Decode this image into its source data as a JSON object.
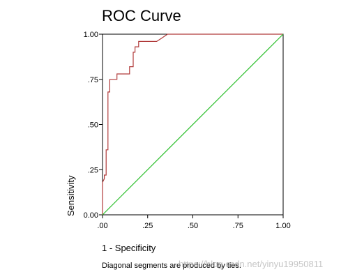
{
  "chart_data": {
    "type": "line",
    "title": "ROC Curve",
    "xlabel": "1 - Specificity",
    "ylabel": "Sensitivity",
    "footnote": "Diagonal segments are produced by ties.",
    "watermark": "https://blog.csdn.net/yinyu19950811",
    "xlim": [
      0,
      1
    ],
    "ylim": [
      0,
      1
    ],
    "x_ticks": [
      ".00",
      ".25",
      ".50",
      ".75",
      "1.00"
    ],
    "y_ticks": [
      "0.00",
      ".25",
      ".50",
      ".75",
      "1.00"
    ],
    "grid": false,
    "series": [
      {
        "color": "#b03a3a",
        "x": [
          0.0,
          0.0,
          0.01,
          0.01,
          0.02,
          0.02,
          0.03,
          0.03,
          0.04,
          0.04,
          0.08,
          0.08,
          0.15,
          0.15,
          0.17,
          0.17,
          0.18,
          0.18,
          0.2,
          0.2,
          0.3,
          0.33,
          0.36,
          1.0
        ],
        "y": [
          0.0,
          0.18,
          0.2,
          0.22,
          0.22,
          0.36,
          0.36,
          0.68,
          0.68,
          0.75,
          0.75,
          0.78,
          0.78,
          0.82,
          0.82,
          0.9,
          0.9,
          0.93,
          0.93,
          0.96,
          0.96,
          0.98,
          1.0,
          1.0
        ]
      },
      {
        "color": "#2bbf2b",
        "x": [
          0,
          1
        ],
        "y": [
          0,
          1
        ]
      }
    ]
  }
}
